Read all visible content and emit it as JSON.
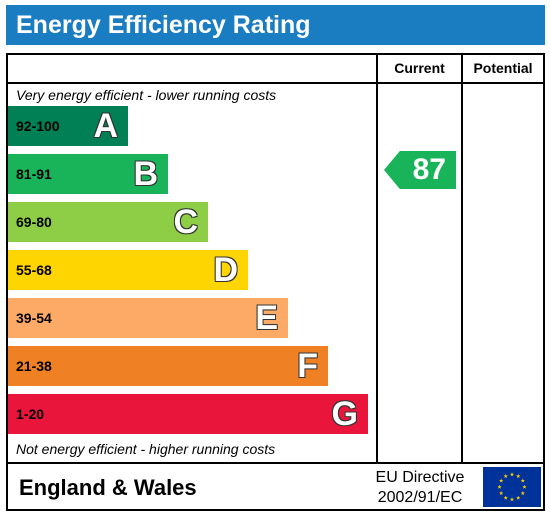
{
  "header": {
    "title": "Energy Efficiency Rating"
  },
  "columns": {
    "current": "Current",
    "potential": "Potential"
  },
  "notes": {
    "top": "Very energy efficient - lower running costs",
    "bottom": "Not energy efficient - higher running costs"
  },
  "bands": [
    {
      "range": "92-100",
      "letter": "A",
      "color": "#008054",
      "range_color": "#000000"
    },
    {
      "range": "81-91",
      "letter": "B",
      "color": "#19b459",
      "range_color": "#000000"
    },
    {
      "range": "69-80",
      "letter": "C",
      "color": "#8dce46",
      "range_color": "#000000"
    },
    {
      "range": "55-68",
      "letter": "D",
      "color": "#ffd500",
      "range_color": "#000000"
    },
    {
      "range": "39-54",
      "letter": "E",
      "color": "#fcaa65",
      "range_color": "#000000"
    },
    {
      "range": "21-38",
      "letter": "F",
      "color": "#ef8023",
      "range_color": "#000000"
    },
    {
      "range": "1-20",
      "letter": "G",
      "color": "#e9153b",
      "range_color": "#000000"
    }
  ],
  "current_rating": {
    "value": "87",
    "band": "B",
    "color": "#19b459"
  },
  "potential_rating": null,
  "footer": {
    "region": "England & Wales",
    "directive_line1": "EU Directive",
    "directive_line2": "2002/91/EC",
    "flag_icon": "eu-flag-icon"
  }
}
